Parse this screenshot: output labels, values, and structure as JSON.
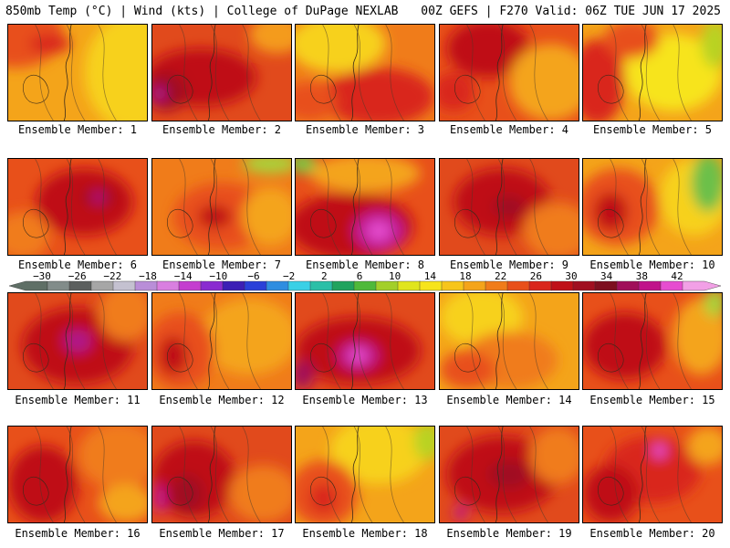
{
  "header": {
    "left": "850mb Temp (°C) | Wind (kts) | College of DuPage NEXLAB",
    "right": "00Z GEFS | F270 Valid: 06Z TUE JUN 17 2025"
  },
  "panels": [
    {
      "caption": "Ensemble Member: 1",
      "base": "#f4a41a",
      "blobs": [
        [
          "#e8501a",
          0.05,
          0.1,
          0.35,
          0.35
        ],
        [
          "#d9261c",
          0.3,
          0.2,
          0.15,
          0.1
        ],
        [
          "#f7d11b",
          0.9,
          0.5,
          0.35,
          0.6
        ]
      ]
    },
    {
      "caption": "Ensemble Member: 2",
      "base": "#e14a1c",
      "blobs": [
        [
          "#bf1018",
          0.35,
          0.55,
          0.4,
          0.3
        ],
        [
          "#a00f20",
          0.1,
          0.7,
          0.15,
          0.2
        ],
        [
          "#b0158a",
          0.05,
          0.72,
          0.05,
          0.08
        ],
        [
          "#f49b1a",
          0.9,
          0.1,
          0.2,
          0.2
        ]
      ]
    },
    {
      "caption": "Ensemble Member: 3",
      "base": "#f07c1a",
      "blobs": [
        [
          "#f7d11b",
          0.3,
          0.2,
          0.35,
          0.3
        ],
        [
          "#d9261c",
          0.6,
          0.75,
          0.4,
          0.3
        ],
        [
          "#e8501a",
          0.1,
          0.8,
          0.2,
          0.2
        ]
      ]
    },
    {
      "caption": "Ensemble Member: 4",
      "base": "#e8501a",
      "blobs": [
        [
          "#bf1018",
          0.35,
          0.25,
          0.3,
          0.3
        ],
        [
          "#f4a41a",
          0.8,
          0.6,
          0.3,
          0.4
        ],
        [
          "#d9261c",
          0.1,
          0.7,
          0.15,
          0.2
        ]
      ]
    },
    {
      "caption": "Ensemble Member: 5",
      "base": "#f4a41a",
      "blobs": [
        [
          "#f7e41b",
          0.65,
          0.5,
          0.35,
          0.4
        ],
        [
          "#b8d321",
          0.95,
          0.2,
          0.1,
          0.25
        ],
        [
          "#d9261c",
          0.1,
          0.6,
          0.2,
          0.45
        ],
        [
          "#e8501a",
          0.35,
          0.15,
          0.2,
          0.2
        ]
      ]
    },
    {
      "caption": "Ensemble Member: 6",
      "base": "#e8501a",
      "blobs": [
        [
          "#bf1018",
          0.55,
          0.45,
          0.35,
          0.35
        ],
        [
          "#a00f20",
          0.65,
          0.4,
          0.12,
          0.1
        ],
        [
          "#c0138a",
          0.65,
          0.4,
          0.04,
          0.06
        ],
        [
          "#f07c1a",
          0.1,
          0.8,
          0.2,
          0.25
        ]
      ]
    },
    {
      "caption": "Ensemble Member: 7",
      "base": "#f07c1a",
      "blobs": [
        [
          "#e8501a",
          0.5,
          0.6,
          0.35,
          0.35
        ],
        [
          "#bf1018",
          0.45,
          0.6,
          0.12,
          0.12
        ],
        [
          "#a8d33a",
          0.85,
          0.05,
          0.2,
          0.1
        ],
        [
          "#f4a41a",
          0.85,
          0.6,
          0.2,
          0.3
        ]
      ]
    },
    {
      "caption": "Ensemble Member: 8",
      "base": "#e8501a",
      "blobs": [
        [
          "#f4a41a",
          0.5,
          0.15,
          0.4,
          0.2
        ],
        [
          "#7ac943",
          0.05,
          0.05,
          0.1,
          0.1
        ],
        [
          "#bf1018",
          0.4,
          0.7,
          0.45,
          0.35
        ],
        [
          "#c21a9a",
          0.6,
          0.75,
          0.18,
          0.2
        ],
        [
          "#e64dd0",
          0.6,
          0.75,
          0.08,
          0.1
        ]
      ]
    },
    {
      "caption": "Ensemble Member: 9",
      "base": "#e14a1c",
      "blobs": [
        [
          "#bf1018",
          0.45,
          0.45,
          0.35,
          0.35
        ],
        [
          "#f07c1a",
          0.85,
          0.75,
          0.25,
          0.3
        ],
        [
          "#a00f20",
          0.5,
          0.5,
          0.12,
          0.12
        ]
      ]
    },
    {
      "caption": "Ensemble Member: 10",
      "base": "#f4a41a",
      "blobs": [
        [
          "#e8501a",
          0.25,
          0.5,
          0.3,
          0.4
        ],
        [
          "#bf1018",
          0.2,
          0.55,
          0.12,
          0.2
        ],
        [
          "#f7d11b",
          0.8,
          0.4,
          0.25,
          0.4
        ],
        [
          "#6cc04a",
          0.9,
          0.25,
          0.12,
          0.3
        ]
      ]
    },
    {
      "caption": "Ensemble Member: 11",
      "base": "#e14a1c",
      "blobs": [
        [
          "#bf1018",
          0.5,
          0.55,
          0.4,
          0.4
        ],
        [
          "#b0158a",
          0.5,
          0.5,
          0.1,
          0.12
        ],
        [
          "#f07c1a",
          0.85,
          0.2,
          0.2,
          0.3
        ]
      ]
    },
    {
      "caption": "Ensemble Member: 12",
      "base": "#f07c1a",
      "blobs": [
        [
          "#f4a41a",
          0.7,
          0.45,
          0.35,
          0.4
        ],
        [
          "#e8501a",
          0.2,
          0.6,
          0.25,
          0.4
        ],
        [
          "#bf1018",
          0.15,
          0.65,
          0.1,
          0.2
        ]
      ]
    },
    {
      "caption": "Ensemble Member: 13",
      "base": "#e14a1c",
      "blobs": [
        [
          "#bf1018",
          0.45,
          0.6,
          0.45,
          0.35
        ],
        [
          "#c0138a",
          0.45,
          0.65,
          0.15,
          0.15
        ],
        [
          "#e64dd0",
          0.45,
          0.65,
          0.07,
          0.08
        ],
        [
          "#a00f5a",
          0.05,
          0.85,
          0.08,
          0.15
        ]
      ]
    },
    {
      "caption": "Ensemble Member: 14",
      "base": "#f4a41a",
      "blobs": [
        [
          "#f7d11b",
          0.3,
          0.25,
          0.3,
          0.3
        ],
        [
          "#f07c1a",
          0.5,
          0.7,
          0.35,
          0.3
        ],
        [
          "#e8501a",
          0.2,
          0.8,
          0.2,
          0.2
        ]
      ]
    },
    {
      "caption": "Ensemble Member: 15",
      "base": "#e8501a",
      "blobs": [
        [
          "#bf1018",
          0.3,
          0.55,
          0.3,
          0.35
        ],
        [
          "#f4a41a",
          0.85,
          0.45,
          0.2,
          0.4
        ],
        [
          "#a8d33a",
          0.95,
          0.1,
          0.08,
          0.15
        ]
      ]
    },
    {
      "caption": "Ensemble Member: 16",
      "base": "#e8501a",
      "blobs": [
        [
          "#bf1018",
          0.25,
          0.6,
          0.25,
          0.4
        ],
        [
          "#f07c1a",
          0.8,
          0.3,
          0.3,
          0.35
        ],
        [
          "#f4a41a",
          0.85,
          0.8,
          0.2,
          0.2
        ]
      ]
    },
    {
      "caption": "Ensemble Member: 17",
      "base": "#e14a1c",
      "blobs": [
        [
          "#bf1018",
          0.3,
          0.55,
          0.3,
          0.4
        ],
        [
          "#a00f20",
          0.25,
          0.7,
          0.12,
          0.2
        ],
        [
          "#c0138a",
          0.05,
          0.75,
          0.05,
          0.15
        ],
        [
          "#f07c1a",
          0.8,
          0.7,
          0.25,
          0.3
        ]
      ]
    },
    {
      "caption": "Ensemble Member: 18",
      "base": "#f4a41a",
      "blobs": [
        [
          "#f7d11b",
          0.6,
          0.25,
          0.35,
          0.35
        ],
        [
          "#b8d321",
          0.95,
          0.15,
          0.1,
          0.2
        ],
        [
          "#e8501a",
          0.2,
          0.7,
          0.25,
          0.35
        ],
        [
          "#d9261c",
          0.2,
          0.75,
          0.1,
          0.15
        ]
      ]
    },
    {
      "caption": "Ensemble Member: 19",
      "base": "#e14a1c",
      "blobs": [
        [
          "#bf1018",
          0.45,
          0.5,
          0.4,
          0.4
        ],
        [
          "#a00f20",
          0.5,
          0.5,
          0.15,
          0.15
        ],
        [
          "#f07c1a",
          0.85,
          0.3,
          0.2,
          0.3
        ],
        [
          "#c0138a",
          0.15,
          0.9,
          0.05,
          0.08
        ]
      ]
    },
    {
      "caption": "Ensemble Member: 20",
      "base": "#e8501a",
      "blobs": [
        [
          "#d9261c",
          0.5,
          0.45,
          0.35,
          0.35
        ],
        [
          "#f4a41a",
          0.9,
          0.2,
          0.15,
          0.2
        ],
        [
          "#e64dd0",
          0.55,
          0.25,
          0.05,
          0.08
        ],
        [
          "#bf1018",
          0.2,
          0.7,
          0.2,
          0.3
        ]
      ]
    }
  ],
  "colorbar": {
    "labels": [
      "−30",
      "−26",
      "−22",
      "−18",
      "−14",
      "−10",
      "−6",
      "−2",
      "2",
      "6",
      "10",
      "14",
      "18",
      "22",
      "26",
      "30",
      "34",
      "38",
      "42"
    ],
    "colors": [
      "#5f6f66",
      "#828c8a",
      "#5c5f5e",
      "#a6a6a6",
      "#c4c1d0",
      "#b98ed8",
      "#d97fe0",
      "#c43ecf",
      "#8a2bd0",
      "#3c1fb5",
      "#2a40d8",
      "#2f8de0",
      "#3ad0e6",
      "#2bbfa7",
      "#21a35e",
      "#4fb93a",
      "#a3cf2a",
      "#e0e51d",
      "#f7e41b",
      "#f7c51b",
      "#f4a41a",
      "#f07c1a",
      "#e8501a",
      "#d9261c",
      "#bf1018",
      "#a00f20",
      "#7d0f1f",
      "#a00f5a",
      "#c0138a",
      "#e64dd0",
      "#f2a0e6"
    ]
  }
}
